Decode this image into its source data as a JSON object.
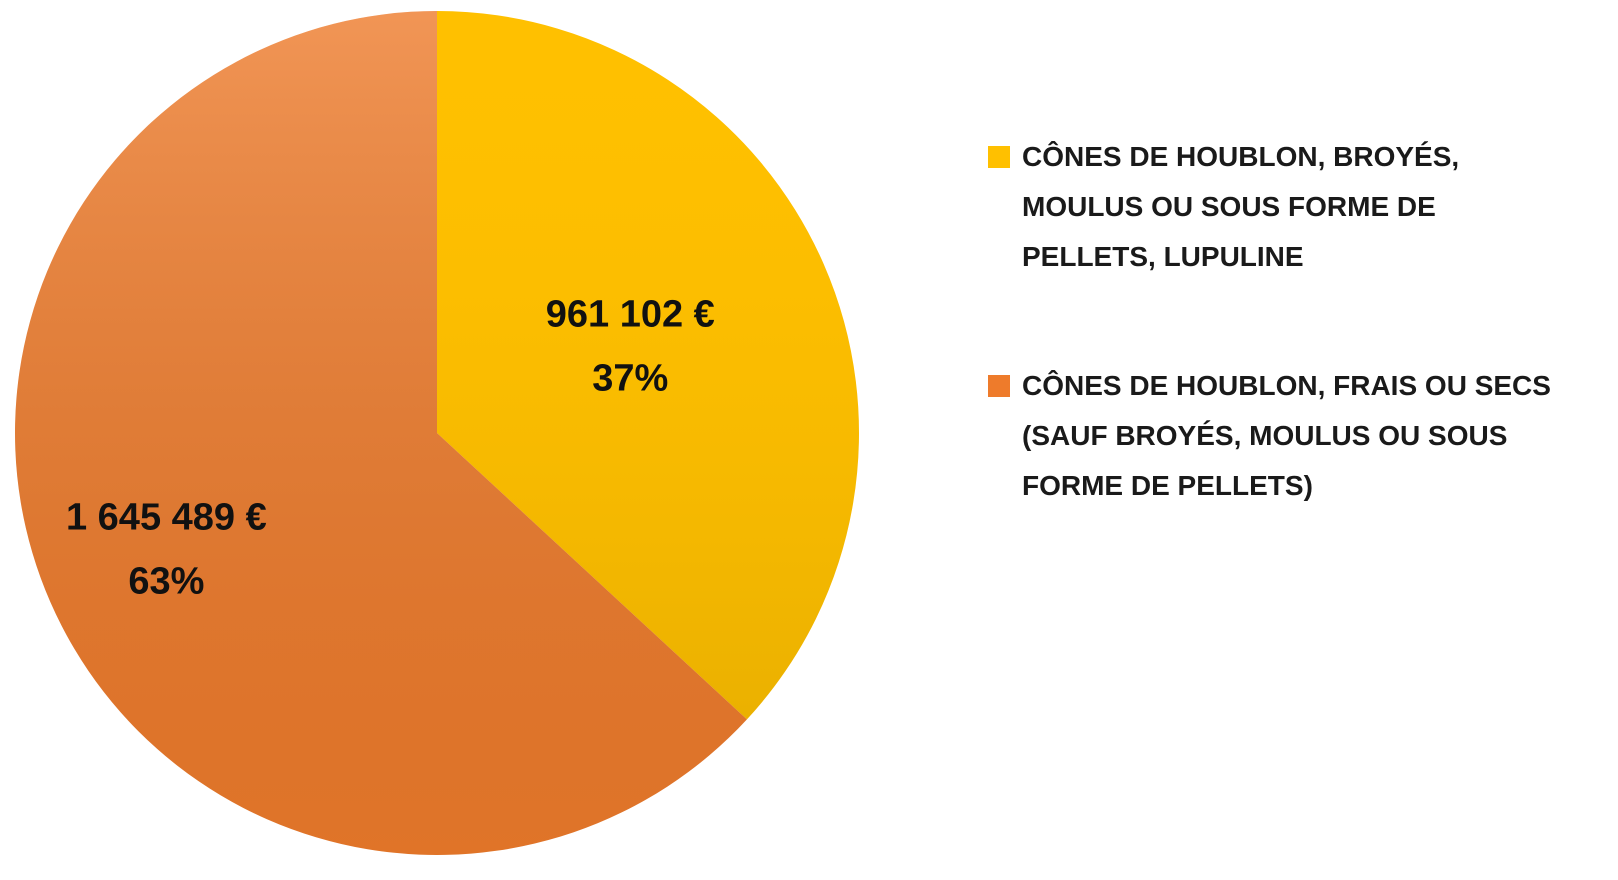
{
  "chart_data": {
    "type": "pie",
    "categories": [
      "CÔNES DE HOUBLON, BROYÉS, MOULUS OU SOUS FORME DE PELLETS, LUPULINE",
      "CÔNES DE HOUBLON, FRAIS OU SECS (SAUF BROYÉS, MOULUS OU SOUS FORME DE PELLETS)"
    ],
    "values": [
      961102,
      1645489
    ],
    "value_labels": [
      "961 102 €",
      "1 645 489 €"
    ],
    "percent_labels": [
      "37%",
      "63%"
    ],
    "colors": [
      "#ffc000",
      "#ee7b2b"
    ],
    "legend": "right"
  }
}
